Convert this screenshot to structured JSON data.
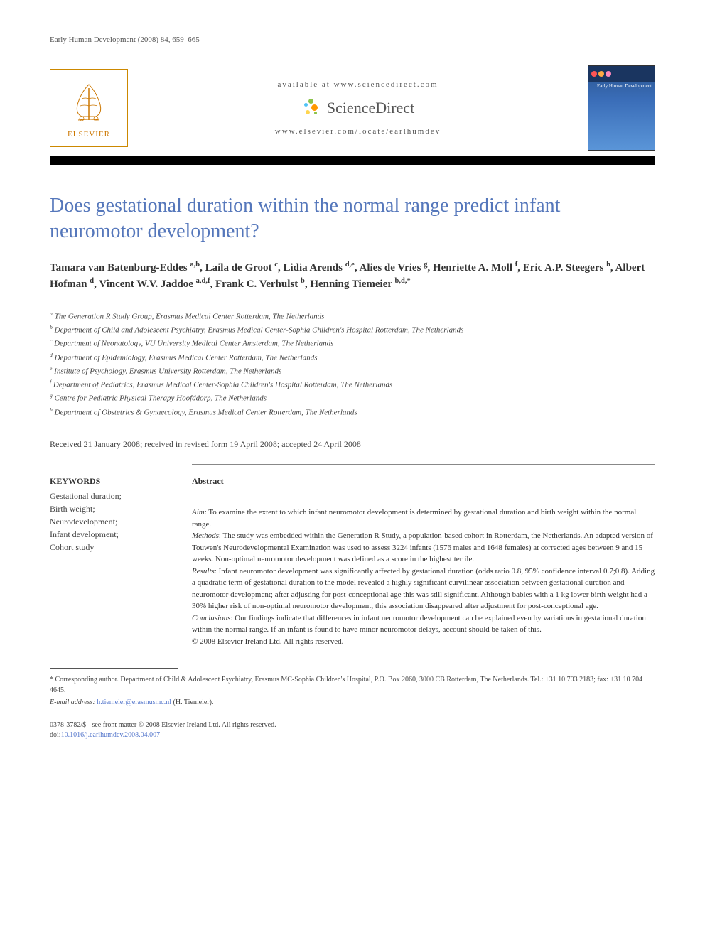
{
  "journal_citation": "Early Human Development (2008) 84, 659–665",
  "banner": {
    "available_text": "available at www.sciencedirect.com",
    "sciencedirect": "ScienceDirect",
    "journal_url": "www.elsevier.com/locate/earlhumdev",
    "elsevier_label": "ELSEVIER",
    "cover_title": "Early Human Development"
  },
  "colors": {
    "title_blue": "#5577bb",
    "elsevier_orange": "#cc7700",
    "link_blue": "#5577cc",
    "cover_top": "#2a5590",
    "cover_bottom": "#5a95d8",
    "sd_green": "#8bc34a",
    "sd_blue": "#4fc3f7",
    "sd_orange": "#ff9800",
    "sd_yellow": "#ffd54f",
    "text_dark": "#333333",
    "text_mid": "#444444"
  },
  "title": "Does gestational duration within the normal range predict infant neuromotor development?",
  "authors_html": "Tamara van Batenburg-Eddes <sup>a,b</sup>, Laila de Groot <sup>c</sup>, Lidia Arends <sup>d,e</sup>, Alies de Vries <sup>g</sup>, Henriette A. Moll <sup>f</sup>, Eric A.P. Steegers <sup>h</sup>, Albert Hofman <sup>d</sup>, Vincent W.V. Jaddoe <sup>a,d,f</sup>, Frank C. Verhulst <sup>b</sup>, Henning Tiemeier <sup>b,d,*</sup>",
  "affiliations": [
    "a The Generation R Study Group, Erasmus Medical Center Rotterdam, The Netherlands",
    "b Department of Child and Adolescent Psychiatry, Erasmus Medical Center-Sophia Children's Hospital Rotterdam, The Netherlands",
    "c Department of Neonatology, VU University Medical Center Amsterdam, The Netherlands",
    "d Department of Epidemiology, Erasmus Medical Center Rotterdam, The Netherlands",
    "e Institute of Psychology, Erasmus University Rotterdam, The Netherlands",
    "f Department of Pediatrics, Erasmus Medical Center-Sophia Children's Hospital Rotterdam, The Netherlands",
    "g Centre for Pediatric Physical Therapy Hoofddorp, The Netherlands",
    "h Department of Obstetrics & Gynaecology, Erasmus Medical Center Rotterdam, The Netherlands"
  ],
  "dates": "Received 21 January 2008; received in revised form 19 April 2008; accepted 24 April 2008",
  "keywords": {
    "heading": "KEYWORDS",
    "items": "Gestational duration;\nBirth weight;\nNeurodevelopment;\nInfant development;\nCohort study"
  },
  "abstract": {
    "heading": "Abstract",
    "aim_label": "Aim",
    "aim": ": To examine the extent to which infant neuromotor development is determined by gestational duration and birth weight within the normal range.",
    "methods_label": "Methods",
    "methods": ": The study was embedded within the Generation R Study, a population-based cohort in Rotterdam, the Netherlands. An adapted version of Touwen's Neurodevelopmental Examination was used to assess 3224 infants (1576 males and 1648 females) at corrected ages between 9 and 15 weeks. Non-optimal neuromotor development was defined as a score in the highest tertile.",
    "results_label": "Results",
    "results": ": Infant neuromotor development was significantly affected by gestational duration (odds ratio 0.8, 95% confidence interval 0.7;0.8). Adding a quadratic term of gestational duration to the model revealed a highly significant curvilinear association between gestational duration and neuromotor development; after adjusting for post-conceptional age this was still significant. Although babies with a 1 kg lower birth weight had a 30% higher risk of non-optimal neuromotor development, this association disappeared after adjustment for post-conceptional age.",
    "conclusions_label": "Conclusions",
    "conclusions": ": Our findings indicate that differences in infant neuromotor development can be explained even by variations in gestational duration within the normal range. If an infant is found to have minor neuromotor delays, account should be taken of this.",
    "copyright": "© 2008 Elsevier Ireland Ltd. All rights reserved."
  },
  "corresponding": "* Corresponding author. Department of Child & Adolescent Psychiatry, Erasmus MC-Sophia Children's Hospital, P.O. Box 2060, 3000 CB Rotterdam, The Netherlands. Tel.: +31 10 703 2183; fax: +31 10 704 4645.",
  "email_label": "E-mail address:",
  "email": "h.tiemeier@erasmusmc.nl",
  "email_author": "(H. Tiemeier).",
  "front_matter": "0378-3782/$ - see front matter © 2008 Elsevier Ireland Ltd. All rights reserved.",
  "doi_label": "doi:",
  "doi": "10.1016/j.earlhumdev.2008.04.007"
}
